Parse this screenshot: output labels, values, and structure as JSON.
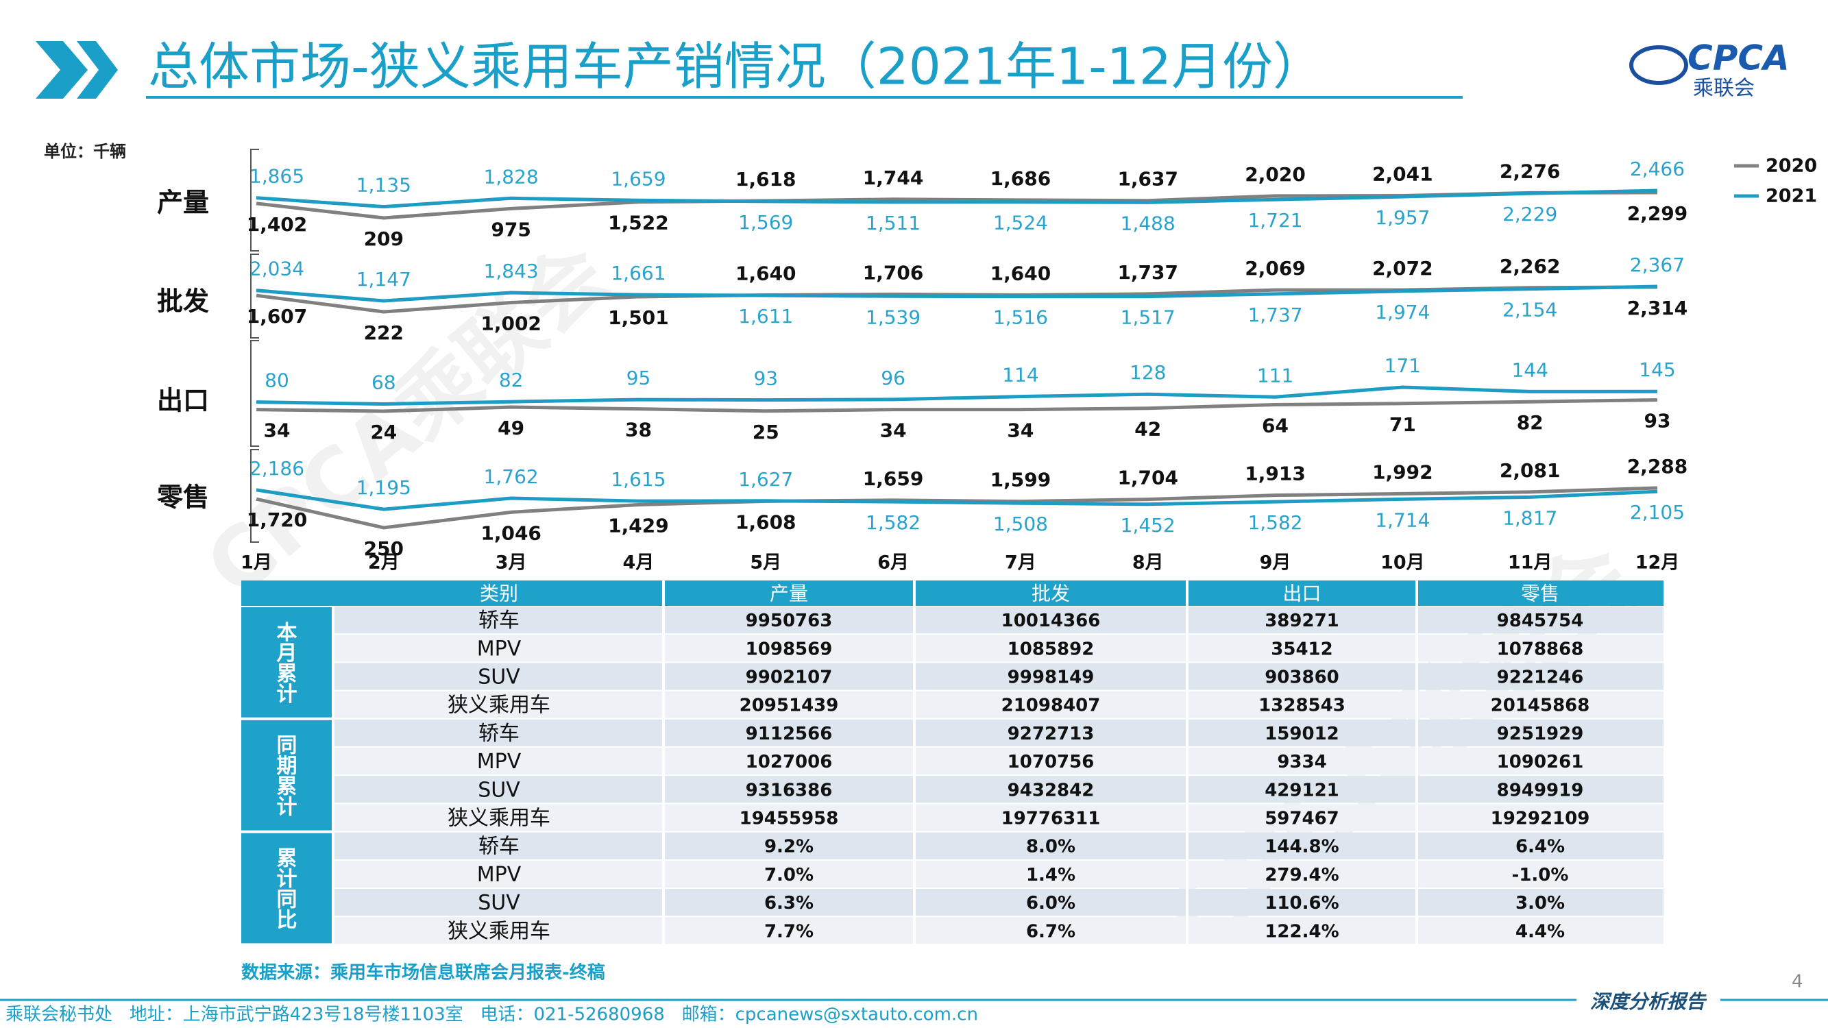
{
  "header": {
    "title": "总体市场-狭义乘用车产销情况（2021年1-12月份）",
    "logo": "CPCA",
    "logo_name": "乘联会",
    "watermark": "CPCA乘联会"
  },
  "chart_data": {
    "type": "line",
    "unit": "单位：千辆",
    "categories": [
      "1月",
      "2月",
      "3月",
      "4月",
      "5月",
      "6月",
      "7月",
      "8月",
      "9月",
      "10月",
      "11月",
      "12月"
    ],
    "legend": [
      {
        "name": "2020",
        "color": "#808080"
      },
      {
        "name": "2021",
        "color": "#1e9cc4"
      }
    ],
    "panels": [
      {
        "title": "产量",
        "series": [
          {
            "values": [
              1402,
              209,
              975,
              1522,
              1618,
              1744,
              1686,
              1637,
              2020,
              2041,
              2276,
              2299
            ],
            "value_labels": [
              "1,402",
              "209",
              "975",
              "1,522",
              "1,618",
              "1,744",
              "1,686",
              "1,637",
              "2,020",
              "2,041",
              "2,276",
              "2,299"
            ]
          },
          {
            "values": [
              1865,
              1135,
              1828,
              1659,
              1569,
              1511,
              1524,
              1488,
              1721,
              1957,
              2229,
              2466
            ],
            "value_labels": [
              "1,865",
              "1,135",
              "1,828",
              "1,659",
              "1,569",
              "1,511",
              "1,524",
              "1,488",
              "1,721",
              "1,957",
              "2,229",
              "2,466"
            ]
          }
        ]
      },
      {
        "title": "批发",
        "series": [
          {
            "values": [
              1607,
              222,
              1002,
              1501,
              1640,
              1706,
              1640,
              1737,
              2069,
              2072,
              2262,
              2314
            ],
            "value_labels": [
              "1,607",
              "222",
              "1,002",
              "1,501",
              "1,640",
              "1,706",
              "1,640",
              "1,737",
              "2,069",
              "2,072",
              "2,262",
              "2,314"
            ]
          },
          {
            "values": [
              2034,
              1147,
              1843,
              1661,
              1611,
              1539,
              1516,
              1517,
              1737,
              1974,
              2154,
              2367
            ],
            "value_labels": [
              "2,034",
              "1,147",
              "1,843",
              "1,661",
              "1,611",
              "1,539",
              "1,516",
              "1,517",
              "1,737",
              "1,974",
              "2,154",
              "2,367"
            ]
          }
        ]
      },
      {
        "title": "出口",
        "series": [
          {
            "values": [
              34,
              24,
              49,
              38,
              25,
              34,
              34,
              42,
              64,
              71,
              82,
              93
            ]
          },
          {
            "values": [
              80,
              68,
              82,
              95,
              93,
              96,
              114,
              128,
              111,
              171,
              144,
              145
            ]
          }
        ]
      },
      {
        "title": "零售",
        "series": [
          {
            "values": [
              1720,
              250,
              1046,
              1429,
              1608,
              1659,
              1599,
              1704,
              1913,
              1992,
              2081,
              2288
            ],
            "value_labels": [
              "1,720",
              "250",
              "1,046",
              "1,429",
              "1,608",
              "1,659",
              "1,599",
              "1,704",
              "1,913",
              "1,992",
              "2,081",
              "2,288"
            ]
          },
          {
            "values": [
              2186,
              1195,
              1762,
              1615,
              1627,
              1582,
              1508,
              1452,
              1582,
              1714,
              1817,
              2105
            ],
            "value_labels": [
              "2,186",
              "1,195",
              "1,762",
              "1,615",
              "1,627",
              "1,582",
              "1,508",
              "1,452",
              "1,582",
              "1,714",
              "1,817",
              "2,105"
            ]
          }
        ]
      }
    ]
  },
  "table": {
    "header": [
      "类别",
      "产量",
      "批发",
      "出口",
      "零售"
    ],
    "groups": [
      {
        "label": "本月累计",
        "rows": [
          [
            "轿车",
            "9950763",
            "10014366",
            "389271",
            "9845754"
          ],
          [
            "MPV",
            "1098569",
            "1085892",
            "35412",
            "1078868"
          ],
          [
            "SUV",
            "9902107",
            "9998149",
            "903860",
            "9221246"
          ],
          [
            "狭义乘用车",
            "20951439",
            "21098407",
            "1328543",
            "20145868"
          ]
        ]
      },
      {
        "label": "同期累计",
        "rows": [
          [
            "轿车",
            "9112566",
            "9272713",
            "159012",
            "9251929"
          ],
          [
            "MPV",
            "1027006",
            "1070756",
            "9334",
            "1090261"
          ],
          [
            "SUV",
            "9316386",
            "9432842",
            "429121",
            "8949919"
          ],
          [
            "狭义乘用车",
            "19455958",
            "19776311",
            "597467",
            "19292109"
          ]
        ]
      },
      {
        "label": "累计同比",
        "rows": [
          [
            "轿车",
            "9.2%",
            "8.0%",
            "144.8%",
            "6.4%"
          ],
          [
            "MPV",
            "7.0%",
            "1.4%",
            "279.4%",
            "-1.0%"
          ],
          [
            "SUV",
            "6.3%",
            "6.0%",
            "110.6%",
            "3.0%"
          ],
          [
            "狭义乘用车",
            "7.7%",
            "6.7%",
            "122.4%",
            "4.4%"
          ]
        ]
      }
    ]
  },
  "footer": {
    "source": "数据来源：乘用车市场信息联席会月报表-终稿",
    "page": "4",
    "contact": "乘联会秘书处   地址：上海市武宁路423号18号楼1103室   电话：021-52680968   邮箱：cpcanews@sxtauto.com.cn",
    "tag": "深度分析报告"
  }
}
